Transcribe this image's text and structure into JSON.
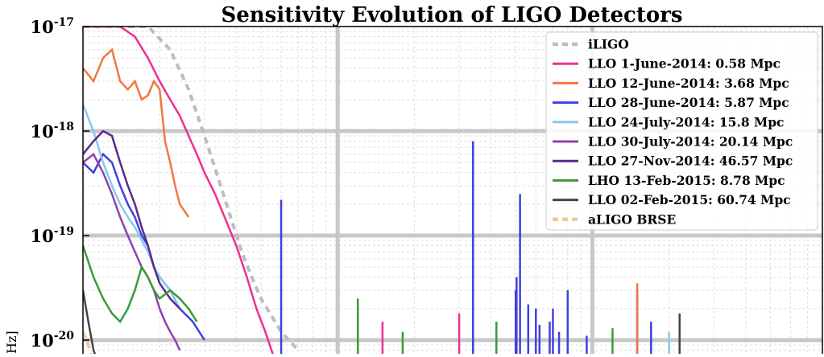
{
  "chart_data": {
    "type": "line",
    "title": "Sensitivity Evolution of LIGO Detectors",
    "xlabel": "",
    "ylabel": "Hz]",
    "y_scale": "log",
    "x_scale": "log",
    "xlim": [
      10,
      8000
    ],
    "ylim_visible": [
      3e-21,
      1e-17
    ],
    "y_ticks": [
      {
        "value": 1e-17,
        "base": "10",
        "exp": "-17"
      },
      {
        "value": 1e-18,
        "base": "10",
        "exp": "-18"
      },
      {
        "value": 1e-19,
        "base": "10",
        "exp": "-19"
      },
      {
        "value": 1e-20,
        "base": "10",
        "exp": "-20"
      }
    ],
    "grid": true,
    "legend_position": "top-right",
    "series": [
      {
        "name": "iLIGO",
        "color": "#bdbdbd",
        "dashed": true,
        "points": [
          [
            10,
            1e-17
          ],
          [
            14,
            1e-17
          ],
          [
            18,
            1e-17
          ],
          [
            22,
            6e-18
          ],
          [
            26,
            2.5e-18
          ],
          [
            30,
            9e-19
          ],
          [
            34,
            3.5e-19
          ],
          [
            38,
            1.5e-19
          ],
          [
            42,
            7e-20
          ],
          [
            46,
            4e-20
          ],
          [
            50,
            2.5e-20
          ],
          [
            60,
            1.2e-20
          ],
          [
            70,
            8e-21
          ]
        ]
      },
      {
        "name": "LLO   1-June-2014:  0.58 Mpc",
        "color": "#ee3090",
        "points": [
          [
            10,
            1e-17
          ],
          [
            12,
            1e-17
          ],
          [
            14,
            1e-17
          ],
          [
            16,
            8e-18
          ],
          [
            18,
            5e-18
          ],
          [
            20,
            3e-18
          ],
          [
            22,
            2e-18
          ],
          [
            24,
            1.4e-18
          ],
          [
            26,
            9e-19
          ],
          [
            28,
            6e-19
          ],
          [
            30,
            4e-19
          ],
          [
            33,
            2.5e-19
          ],
          [
            36,
            1.5e-19
          ],
          [
            40,
            8e-20
          ],
          [
            44,
            4e-20
          ],
          [
            48,
            2e-20
          ],
          [
            52,
            1.2e-20
          ],
          [
            56,
            7e-21
          ]
        ]
      },
      {
        "name": "LLO 12-June-2014:  3.68 Mpc",
        "color": "#f07840",
        "points": [
          [
            10,
            4e-18
          ],
          [
            11,
            3e-18
          ],
          [
            12,
            5e-18
          ],
          [
            13,
            6e-18
          ],
          [
            14,
            3e-18
          ],
          [
            15,
            2.5e-18
          ],
          [
            16,
            3e-18
          ],
          [
            17,
            2e-18
          ],
          [
            18,
            2.2e-18
          ],
          [
            19,
            3e-18
          ],
          [
            20,
            2.5e-18
          ],
          [
            21,
            8e-19
          ],
          [
            22,
            5e-19
          ],
          [
            23,
            3e-19
          ],
          [
            24,
            2e-19
          ],
          [
            26,
            1.5e-19
          ]
        ]
      },
      {
        "name": "LLO 28-June-2014:  5.87 Mpc",
        "color": "#4040e0",
        "points": [
          [
            10,
            5e-19
          ],
          [
            11,
            4e-19
          ],
          [
            12,
            6e-19
          ],
          [
            13,
            5e-19
          ],
          [
            14,
            3e-19
          ],
          [
            15,
            2e-19
          ],
          [
            16,
            1.5e-19
          ],
          [
            17,
            1e-19
          ],
          [
            18,
            8e-20
          ],
          [
            19,
            5e-20
          ],
          [
            20,
            4e-20
          ],
          [
            22,
            3e-20
          ],
          [
            24,
            2e-20
          ],
          [
            27,
            1.5e-20
          ],
          [
            30,
            1e-20
          ]
        ]
      },
      {
        "name": "LLO 24-July-2014:  15.8 Mpc",
        "color": "#88c8f0",
        "points": [
          [
            10,
            1.8e-18
          ],
          [
            11,
            1e-18
          ],
          [
            12,
            5e-19
          ],
          [
            13,
            3e-19
          ],
          [
            14,
            2e-19
          ],
          [
            15,
            1.5e-19
          ],
          [
            16,
            1.2e-19
          ],
          [
            17,
            9e-20
          ],
          [
            18,
            7e-20
          ],
          [
            19,
            5e-20
          ],
          [
            20,
            4e-20
          ],
          [
            22,
            3e-20
          ],
          [
            24,
            2e-20
          ]
        ]
      },
      {
        "name": "LLO 30-July-2014:  20.14 Mpc",
        "color": "#9040b0",
        "points": [
          [
            10,
            5e-19
          ],
          [
            11,
            6e-19
          ],
          [
            12,
            4e-19
          ],
          [
            13,
            2.5e-19
          ],
          [
            14,
            1.5e-19
          ],
          [
            15,
            1e-19
          ],
          [
            16,
            7e-20
          ],
          [
            17,
            5e-20
          ],
          [
            18,
            4e-20
          ],
          [
            19,
            3e-20
          ],
          [
            20,
            2e-20
          ],
          [
            21,
            1.5e-20
          ],
          [
            22,
            1.2e-20
          ],
          [
            23,
            1e-20
          ],
          [
            24,
            8e-21
          ]
        ]
      },
      {
        "name": "LLO 27-Nov-2014:  46.57 Mpc",
        "color": "#5a2a8a",
        "points": [
          [
            10,
            6e-19
          ],
          [
            11,
            8e-19
          ],
          [
            12,
            1e-18
          ],
          [
            13,
            9e-19
          ],
          [
            14,
            5e-19
          ],
          [
            15,
            3e-19
          ],
          [
            16,
            2e-19
          ],
          [
            17,
            1.2e-19
          ],
          [
            18,
            8e-20
          ],
          [
            19,
            5e-20
          ],
          [
            20,
            3.5e-20
          ],
          [
            22,
            2.5e-20
          ],
          [
            24,
            2e-20
          ]
        ]
      },
      {
        "name": "LHO 13-Feb-2015:  8.78 Mpc",
        "color": "#3a9a3a",
        "points": [
          [
            10,
            8e-20
          ],
          [
            11,
            4e-20
          ],
          [
            12,
            2.5e-20
          ],
          [
            13,
            1.8e-20
          ],
          [
            14,
            1.5e-20
          ],
          [
            15,
            2e-20
          ],
          [
            16,
            3e-20
          ],
          [
            17,
            5e-20
          ],
          [
            18,
            4e-20
          ],
          [
            19,
            3e-20
          ],
          [
            20,
            2.5e-20
          ],
          [
            22,
            3e-20
          ],
          [
            24,
            2.5e-20
          ],
          [
            26,
            2e-20
          ],
          [
            28,
            1.5e-20
          ]
        ]
      },
      {
        "name": "LLO 02-Feb-2015:  60.74 Mpc",
        "color": "#444444",
        "points": [
          [
            10,
            3e-20
          ],
          [
            10.5,
            1.5e-20
          ],
          [
            11,
            8e-21
          ],
          [
            11.5,
            6e-21
          ]
        ]
      },
      {
        "name": "aLIGO BRSE",
        "color": "#f0c890",
        "dashed": true,
        "points": [
          [
            10,
            1.2e-20
          ],
          [
            10.5,
            9e-21
          ],
          [
            11,
            6e-21
          ]
        ]
      }
    ],
    "spikes": [
      {
        "color": "#4040e0",
        "f": 60,
        "top": 2.2e-19
      },
      {
        "color": "#3a9a3a",
        "f": 120,
        "top": 2.5e-20
      },
      {
        "color": "#ee3090",
        "f": 150,
        "top": 1.5e-20
      },
      {
        "color": "#3a9a3a",
        "f": 180,
        "top": 1.2e-20
      },
      {
        "color": "#ee3090",
        "f": 300,
        "top": 1.8e-20
      },
      {
        "color": "#4040e0",
        "f": 340,
        "top": 8e-19
      },
      {
        "color": "#3a9a3a",
        "f": 420,
        "top": 1.5e-20
      },
      {
        "color": "#4040e0",
        "f": 500,
        "top": 3e-20
      },
      {
        "color": "#4040e0",
        "f": 504,
        "top": 4e-20
      },
      {
        "color": "#4040e0",
        "f": 520,
        "top": 2.5e-19
      },
      {
        "color": "#4040e0",
        "f": 560,
        "top": 2.2e-20
      },
      {
        "color": "#4040e0",
        "f": 600,
        "top": 2e-20
      },
      {
        "color": "#4040e0",
        "f": 620,
        "top": 1.4e-20
      },
      {
        "color": "#4040e0",
        "f": 680,
        "top": 1.5e-20
      },
      {
        "color": "#4040e0",
        "f": 700,
        "top": 2e-20
      },
      {
        "color": "#4040e0",
        "f": 740,
        "top": 1.2e-20
      },
      {
        "color": "#4040e0",
        "f": 800,
        "top": 3e-20
      },
      {
        "color": "#4040e0",
        "f": 950,
        "top": 1.1e-20
      },
      {
        "color": "#3a9a3a",
        "f": 1200,
        "top": 1.3e-20
      },
      {
        "color": "#4040e0",
        "f": 1500,
        "top": 3e-20
      },
      {
        "color": "#f07840",
        "f": 1500,
        "top": 3.5e-20
      },
      {
        "color": "#4040e0",
        "f": 1700,
        "top": 1.5e-20
      },
      {
        "color": "#88c8f0",
        "f": 2000,
        "top": 1.2e-20
      },
      {
        "color": "#444444",
        "f": 2200,
        "top": 1.8e-20
      }
    ]
  }
}
